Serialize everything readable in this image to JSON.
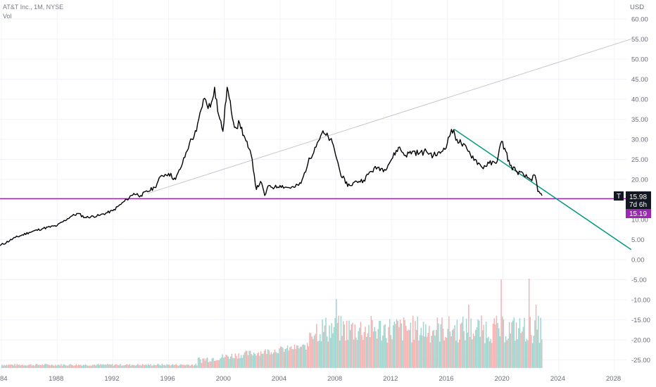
{
  "legend": {
    "symbol": "AT&T Inc., 1M, NYSE",
    "vol_label": "Vol"
  },
  "currency": "USD",
  "colors": {
    "price": "#000000",
    "support": "#9c27b0",
    "trend": "#089981",
    "ray": "#c8c8c8",
    "vol_up": "#9fd6cf",
    "vol_down": "#f6b2b2",
    "grid": "#f0f3fa",
    "axis_text": "#6a6d78"
  },
  "price_badges": {
    "ticker": "T",
    "last_price": "15.98",
    "countdown": "7d 6h",
    "support_price": "15.19"
  },
  "chart_data": {
    "type": "line",
    "title": "AT&T Inc., 1M, NYSE",
    "xlabel": "",
    "ylabel": "USD",
    "x_ticks": [
      "84",
      "1988",
      "1992",
      "1996",
      "2000",
      "2004",
      "2008",
      "2012",
      "2016",
      "2020",
      "2024",
      "2028"
    ],
    "y_ticks": [
      "60.00",
      "55.00",
      "50.00",
      "45.00",
      "40.00",
      "35.00",
      "30.00",
      "25.00",
      "20.00",
      "15.00",
      "10.00",
      "5.00",
      "0.00",
      "-5.00",
      "-10.00",
      "-15.00",
      "-20.00",
      "-25.00"
    ],
    "ylim": [
      -27,
      62
    ],
    "xlim": [
      1983.9,
      2029.2
    ],
    "grid": true,
    "series": [
      {
        "type": "line",
        "x": [
          1983.9,
          1985,
          1986,
          1987,
          1988,
          1989,
          1989.5,
          1990,
          1991,
          1992,
          1993,
          1993.5,
          1994,
          1995,
          1995.5,
          1996,
          1996.5,
          1997,
          1997.5,
          1998,
          1998.5,
          1999,
          1999.3,
          1999.6,
          1999.9,
          2000.2,
          2000.5,
          2000.8,
          2001.1,
          2001.4,
          2001.7,
          2002,
          2002.3,
          2002.6,
          2002.9,
          2003.2,
          2003.6,
          2004,
          2004.5,
          2005,
          2005.5,
          2006,
          2006.5,
          2007,
          2007.3,
          2007.6,
          2007.9,
          2008.3,
          2008.7,
          2009,
          2009.5,
          2010,
          2010.5,
          2011,
          2011.5,
          2012,
          2012.5,
          2013,
          2013.5,
          2014,
          2014.5,
          2015,
          2015.5,
          2016,
          2016.3,
          2016.7,
          2017,
          2017.5,
          2018,
          2018.5,
          2019,
          2019.5,
          2019.9,
          2020.2,
          2020.5,
          2021,
          2021.5,
          2022,
          2022.3,
          2022.5,
          2022.8
        ],
        "y": [
          3.5,
          5.5,
          6.8,
          7.8,
          8.5,
          10.8,
          11.5,
          10.5,
          11.0,
          12.2,
          15.0,
          16.5,
          16.0,
          18.0,
          21.0,
          21.5,
          20.0,
          24.0,
          29.0,
          32.0,
          40.0,
          38.0,
          43.0,
          36.0,
          32.0,
          43.0,
          37.0,
          33.0,
          34.0,
          31.0,
          28.0,
          25.0,
          17.5,
          19.5,
          16.0,
          18.5,
          18.0,
          18.5,
          18.0,
          18.0,
          19.0,
          24.0,
          28.0,
          31.5,
          31.0,
          30.0,
          27.5,
          22.0,
          19.0,
          18.5,
          19.5,
          19.8,
          22.0,
          23.0,
          22.5,
          25.0,
          28.0,
          26.0,
          27.0,
          26.5,
          27.0,
          26.0,
          26.5,
          29.0,
          32.5,
          30.0,
          29.0,
          27.0,
          25.0,
          23.0,
          24.0,
          24.0,
          29.5,
          27.0,
          23.5,
          22.0,
          21.0,
          20.0,
          21.0,
          17.0,
          15.98
        ]
      },
      {
        "type": "hline",
        "y": 15.19
      },
      {
        "type": "trendline",
        "x": [
          2016.5,
          2029.2
        ],
        "y": [
          32.5,
          2.5
        ]
      },
      {
        "type": "ray",
        "x": [
          1994.5,
          2029.2
        ],
        "y": [
          16.5,
          55.0
        ]
      },
      {
        "type": "volume",
        "note": "monthly volume bars rising from ~1998, spikes ~2008, 2019, 2021"
      }
    ]
  }
}
